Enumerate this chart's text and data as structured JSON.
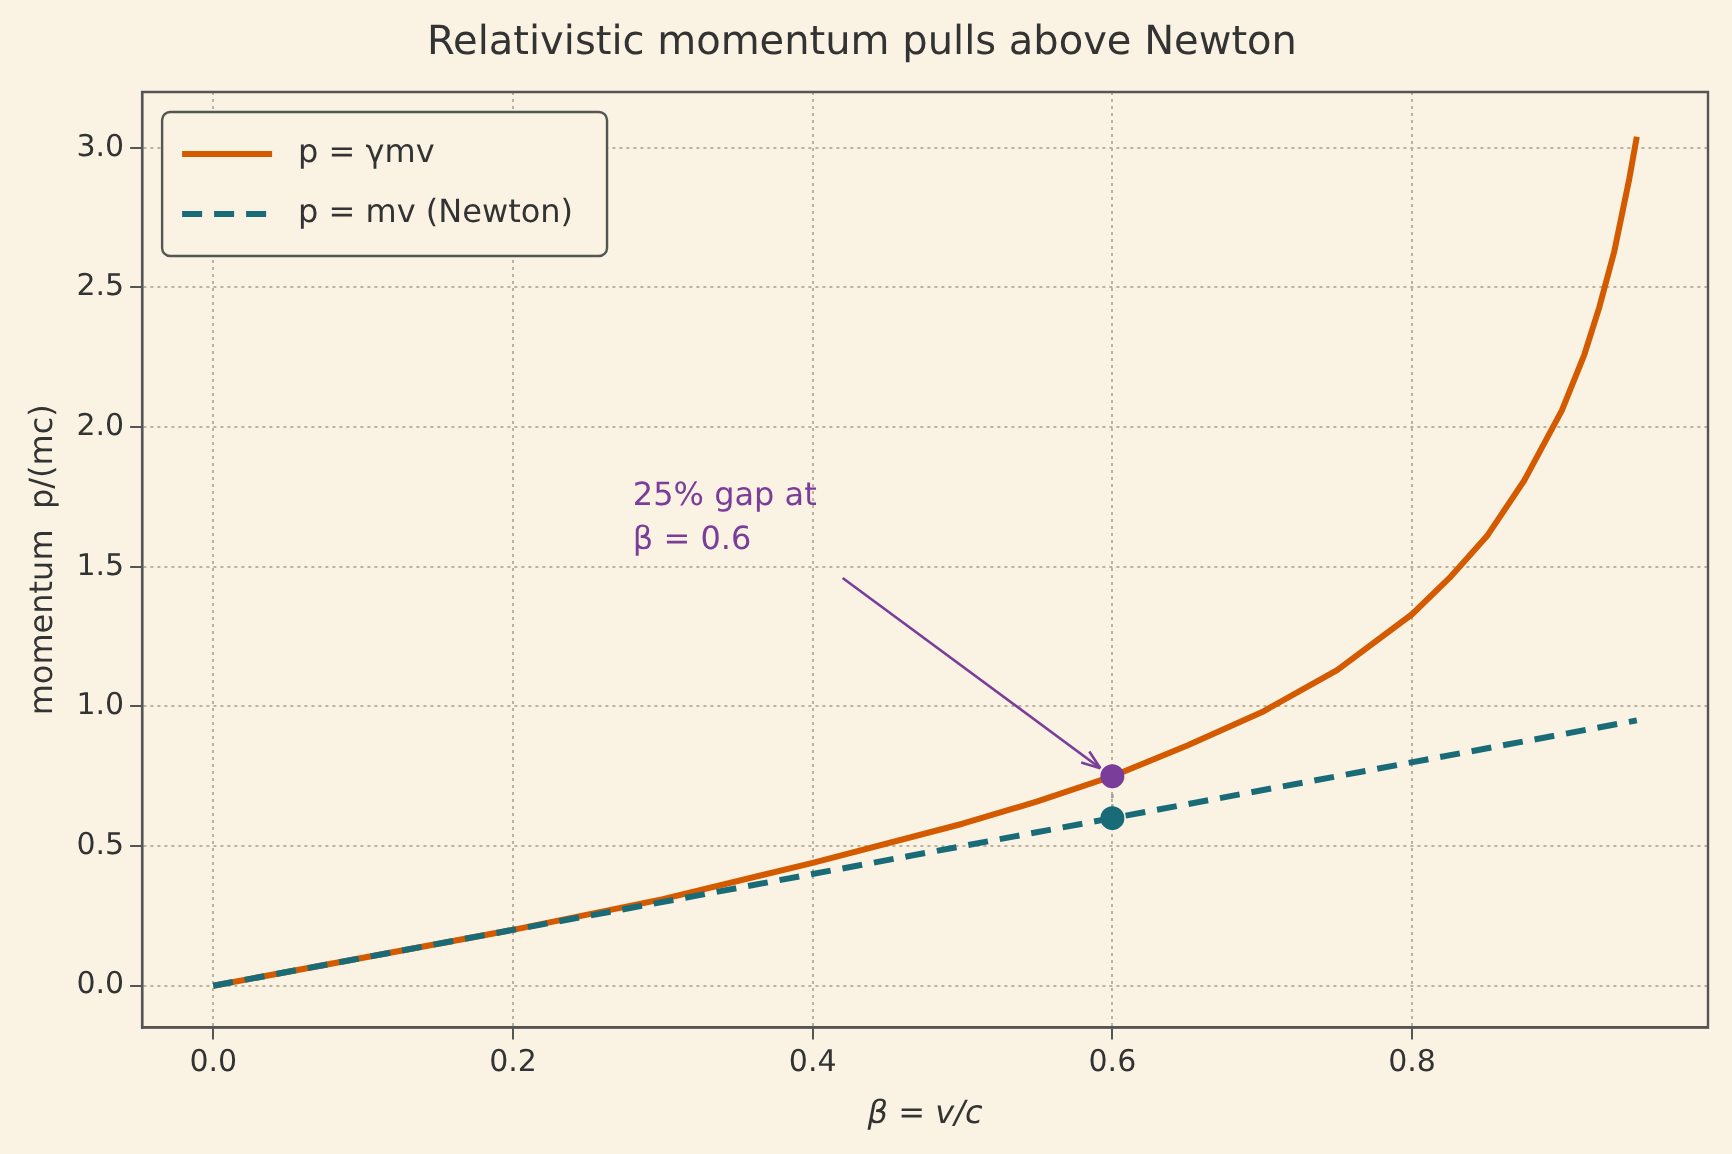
{
  "chart_data": {
    "type": "line",
    "title": "Relativistic momentum pulls above Newton",
    "xlabel": "β = v/c",
    "ylabel": "momentum  p/(mc)",
    "series": [
      {
        "name": "p = γmv",
        "color": "#d45a00",
        "x": [
          0,
          0.1,
          0.2,
          0.3,
          0.4,
          0.5,
          0.55,
          0.6,
          0.65,
          0.7,
          0.75,
          0.8,
          0.825,
          0.85,
          0.875,
          0.9,
          0.915,
          0.925,
          0.935,
          0.945,
          0.95
        ],
        "values": [
          0,
          0.1,
          0.2,
          0.31,
          0.44,
          0.58,
          0.66,
          0.75,
          0.86,
          0.98,
          1.13,
          1.33,
          1.46,
          1.61,
          1.81,
          2.06,
          2.26,
          2.43,
          2.63,
          2.89,
          3.04
        ],
        "line_style": "solid"
      },
      {
        "name": "p = mv (Newton)",
        "color": "#1a6b78",
        "x": [
          0,
          0.95
        ],
        "values": [
          0,
          0.95
        ],
        "line_style": "dashed"
      },
      {
        "type": "line",
        "color": "#9a9a9a",
        "x": [
          0.6,
          0.6
        ],
        "values": [
          0.6,
          0.75
        ],
        "line_style": "dotted"
      },
      {
        "type": "scatter",
        "color": "#7b3d9a",
        "x": [
          0.6
        ],
        "values": [
          0.75
        ],
        "marker": "circle"
      },
      {
        "type": "scatter",
        "color": "#1a6b78",
        "x": [
          0.6
        ],
        "values": [
          0.6
        ],
        "marker": "circle"
      }
    ],
    "annotations": [
      {
        "text": "25% gap at\nβ = 0.6",
        "x": 0.6,
        "y": 0.75
      }
    ],
    "xlim": [
      -0.0475,
      0.9975
    ],
    "xticks": [
      {
        "value": 0,
        "label": "0.0"
      },
      0.2,
      0.4,
      0.6,
      0.8
    ],
    "ylim": [
      -0.15,
      3.2
    ],
    "yticks": [
      {
        "value": 0,
        "label": "0.0"
      },
      0.5,
      {
        "value": 1,
        "label": "1.0"
      },
      1.5,
      {
        "value": 2,
        "label": "2.0"
      },
      2.5,
      {
        "value": 3,
        "label": "3.0"
      }
    ],
    "grid": true,
    "legend": "top left"
  }
}
